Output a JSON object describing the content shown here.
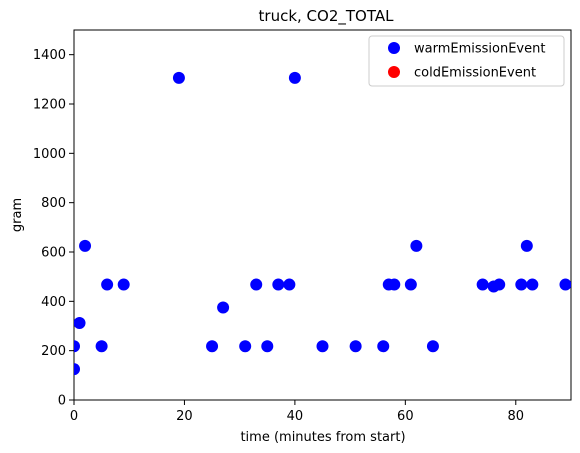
{
  "chart_data": {
    "type": "scatter",
    "title": "truck, CO2_TOTAL",
    "xlabel": "time (minutes from start)",
    "ylabel": "gram",
    "xlim": [
      0,
      90
    ],
    "ylim": [
      0,
      1500
    ],
    "xticks": [
      0,
      20,
      40,
      60,
      80
    ],
    "yticks": [
      0,
      200,
      400,
      600,
      800,
      1000,
      1200,
      1400
    ],
    "grid": false,
    "legend_position": "top-right",
    "series": [
      {
        "name": "warmEmissionEvent",
        "color": "#0000ff",
        "points": [
          [
            0,
            125
          ],
          [
            0,
            218
          ],
          [
            1,
            312
          ],
          [
            2,
            625
          ],
          [
            5,
            218
          ],
          [
            6,
            468
          ],
          [
            9,
            468
          ],
          [
            19,
            1306
          ],
          [
            25,
            218
          ],
          [
            27,
            375
          ],
          [
            31,
            218
          ],
          [
            33,
            468
          ],
          [
            35,
            218
          ],
          [
            37,
            468
          ],
          [
            39,
            468
          ],
          [
            40,
            1306
          ],
          [
            45,
            218
          ],
          [
            51,
            218
          ],
          [
            56,
            218
          ],
          [
            57,
            468
          ],
          [
            58,
            468
          ],
          [
            61,
            468
          ],
          [
            62,
            625
          ],
          [
            65,
            218
          ],
          [
            74,
            468
          ],
          [
            76,
            460
          ],
          [
            77,
            468
          ],
          [
            81,
            468
          ],
          [
            82,
            625
          ],
          [
            83,
            468
          ],
          [
            89,
            468
          ]
        ]
      },
      {
        "name": "coldEmissionEvent",
        "color": "#ff0000",
        "points": []
      }
    ]
  }
}
